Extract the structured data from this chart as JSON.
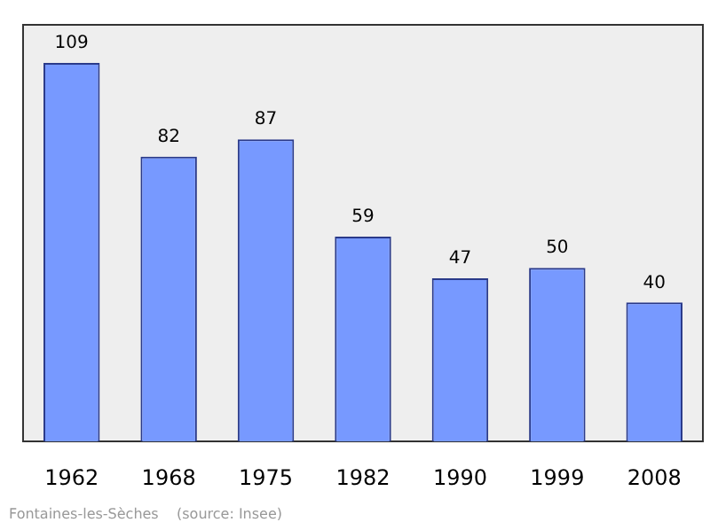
{
  "chart_data": {
    "type": "bar",
    "relative": false,
    "categories": [
      "1962",
      "1968",
      "1975",
      "1982",
      "1990",
      "1999",
      "2008"
    ],
    "values": [
      109,
      82,
      87,
      59,
      47,
      50,
      40
    ],
    "color": "#7799ff",
    "data_labels": true,
    "grid": false,
    "legend": false,
    "annotations": [
      "Fontaines-les-Sèches    (source: Insee)"
    ]
  }
}
